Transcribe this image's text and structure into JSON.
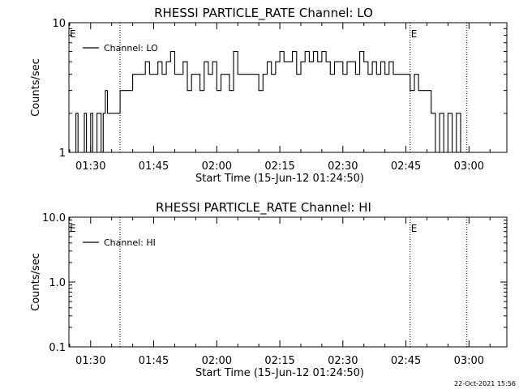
{
  "timestamp": "22-Oct-2021 15:56",
  "chart_data": [
    {
      "type": "line",
      "title": "RHESSI PARTICLE_RATE Channel: LO",
      "xlabel": "Start Time (15-Jun-12 01:24:50)",
      "ylabel": "Counts/sec",
      "yscale": "log",
      "xlim": [
        "01:24:50",
        "03:09:00"
      ],
      "ylim": [
        1,
        10
      ],
      "ytick_labels": [
        "1",
        "10"
      ],
      "xtick_labels": [
        "01:30",
        "01:45",
        "02:00",
        "02:15",
        "02:30",
        "02:45",
        "03:00"
      ],
      "grid": false,
      "legend": {
        "position": "top-left",
        "entries": [
          "Channel: LO"
        ]
      },
      "annotations": [
        {
          "text": "E",
          "x": "01:24:50"
        },
        {
          "text": "E",
          "x": "02:46:00"
        }
      ],
      "event_lines": [
        "01:37:00",
        "02:46:00",
        "02:59:30"
      ],
      "series": [
        {
          "name": "Channel: LO",
          "x": [
            "01:24:50",
            "01:26:00",
            "01:26:30",
            "01:27:00",
            "01:27:30",
            "01:28:00",
            "01:28:30",
            "01:29:00",
            "01:29:30",
            "01:30:00",
            "01:30:30",
            "01:31:00",
            "01:31:30",
            "01:32:00",
            "01:32:30",
            "01:33:00",
            "01:33:30",
            "01:34:00",
            "01:35:00",
            "01:36:00",
            "01:37:00",
            "01:38:00",
            "01:39:00",
            "01:40:00",
            "01:41:00",
            "01:42:00",
            "01:43:00",
            "01:44:00",
            "01:45:00",
            "01:46:00",
            "01:47:00",
            "01:48:00",
            "01:49:00",
            "01:50:00",
            "01:51:00",
            "01:52:00",
            "01:53:00",
            "01:54:00",
            "01:55:00",
            "01:56:00",
            "01:57:00",
            "01:58:00",
            "01:59:00",
            "02:00:00",
            "02:01:00",
            "02:02:00",
            "02:03:00",
            "02:04:00",
            "02:05:00",
            "02:06:00",
            "02:07:00",
            "02:08:00",
            "02:09:00",
            "02:10:00",
            "02:11:00",
            "02:12:00",
            "02:13:00",
            "02:14:00",
            "02:15:00",
            "02:16:00",
            "02:17:00",
            "02:18:00",
            "02:19:00",
            "02:20:00",
            "02:21:00",
            "02:22:00",
            "02:23:00",
            "02:24:00",
            "02:25:00",
            "02:26:00",
            "02:27:00",
            "02:28:00",
            "02:29:00",
            "02:30:00",
            "02:31:00",
            "02:32:00",
            "02:33:00",
            "02:34:00",
            "02:35:00",
            "02:36:00",
            "02:37:00",
            "02:38:00",
            "02:39:00",
            "02:40:00",
            "02:41:00",
            "02:42:00",
            "02:43:00",
            "02:44:00",
            "02:45:00",
            "02:46:00",
            "02:47:00",
            "02:48:00",
            "02:49:00",
            "02:50:00",
            "02:51:00",
            "02:52:00",
            "02:53:00",
            "02:54:00",
            "02:55:00",
            "02:56:00",
            "02:57:00",
            "02:58:00"
          ],
          "y": [
            1,
            1,
            2,
            1,
            1,
            1,
            2,
            1,
            1,
            2,
            1,
            1,
            2,
            2,
            1,
            2,
            3,
            2,
            2,
            2,
            3,
            3,
            3,
            4,
            4,
            4,
            5,
            4,
            4,
            5,
            4,
            5,
            6,
            4,
            4,
            5,
            3,
            4,
            4,
            3,
            5,
            4,
            5,
            3,
            4,
            4,
            3,
            6,
            4,
            4,
            4,
            4,
            4,
            3,
            4,
            5,
            4,
            5,
            6,
            5,
            5,
            6,
            4,
            5,
            6,
            5,
            6,
            5,
            6,
            5,
            4,
            5,
            5,
            4,
            5,
            5,
            4,
            6,
            5,
            4,
            5,
            4,
            5,
            4,
            5,
            4,
            4,
            4,
            4,
            3,
            4,
            3,
            3,
            3,
            2,
            1,
            2,
            1,
            2,
            1,
            2,
            1
          ]
        }
      ]
    },
    {
      "type": "line",
      "title": "RHESSI PARTICLE_RATE Channel: HI",
      "xlabel": "Start Time (15-Jun-12 01:24:50)",
      "ylabel": "Counts/sec",
      "yscale": "log",
      "xlim": [
        "01:24:50",
        "03:09:00"
      ],
      "ylim": [
        0.1,
        10
      ],
      "ytick_labels": [
        "0.1",
        "1.0",
        "10.0"
      ],
      "xtick_labels": [
        "01:30",
        "01:45",
        "02:00",
        "02:15",
        "02:30",
        "02:45",
        "03:00"
      ],
      "grid": false,
      "legend": {
        "position": "top-left",
        "entries": [
          "Channel: HI"
        ]
      },
      "annotations": [
        {
          "text": "E",
          "x": "01:24:50"
        },
        {
          "text": "E",
          "x": "02:46:00"
        }
      ],
      "event_lines": [
        "01:37:00",
        "02:46:00",
        "02:59:30"
      ],
      "series": [
        {
          "name": "Channel: HI",
          "x": [],
          "y": []
        }
      ]
    }
  ]
}
